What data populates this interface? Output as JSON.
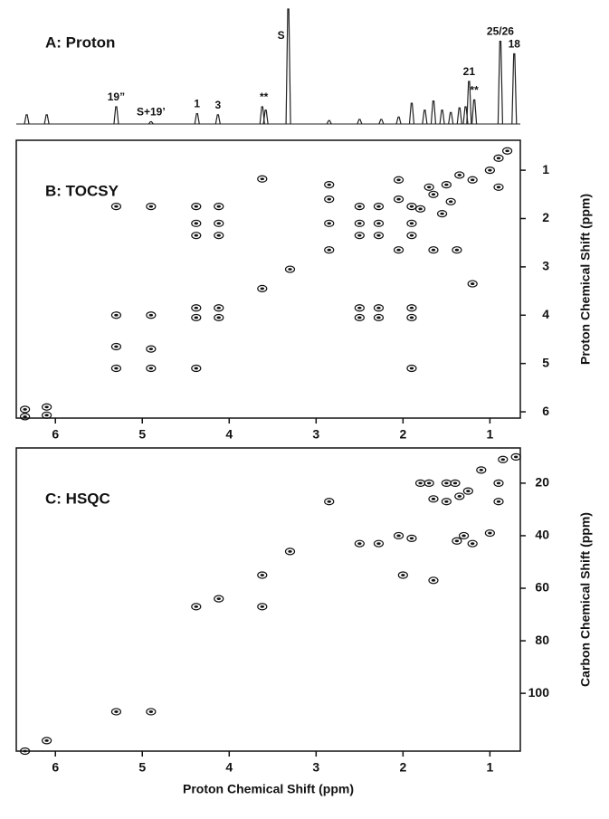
{
  "chart_data": [
    {
      "type": "spectrum",
      "title": "A: Proton",
      "x": [
        6.33,
        6.1,
        5.3,
        4.9,
        4.37,
        4.13,
        3.62,
        3.58,
        3.32,
        2.85,
        2.5,
        2.25,
        2.05,
        1.9,
        1.75,
        1.65,
        1.55,
        1.45,
        1.35,
        1.28,
        1.24,
        1.18,
        0.88,
        0.72
      ],
      "values": [
        8,
        8,
        15,
        2,
        9,
        8,
        15,
        12,
        100,
        3,
        4,
        4,
        6,
        18,
        12,
        20,
        12,
        10,
        14,
        15,
        37,
        21,
        72,
        61
      ],
      "xlim": [
        6.45,
        0.65
      ],
      "ylim": [
        0,
        100
      ],
      "color": "#222222",
      "annotations": [
        {
          "text": "19”",
          "x": 5.3
        },
        {
          "text": "S+19’",
          "x": 4.9
        },
        {
          "text": "1",
          "x": 4.37
        },
        {
          "text": "3",
          "x": 4.13
        },
        {
          "text": "**",
          "x": 3.6
        },
        {
          "text": "S",
          "x": 3.32
        },
        {
          "text": "21",
          "x": 1.24
        },
        {
          "text": "**",
          "x": 1.18
        },
        {
          "text": "25/26",
          "x": 0.88
        },
        {
          "text": "18",
          "x": 0.72
        }
      ]
    },
    {
      "type": "contour",
      "title": "B: TOCSY",
      "x": [
        6.35,
        6.35,
        6.1,
        6.1,
        5.3,
        5.3,
        5.3,
        5.3,
        4.9,
        4.9,
        4.9,
        4.9,
        4.38,
        4.38,
        4.38,
        4.38,
        4.38,
        4.38,
        4.12,
        4.12,
        4.12,
        4.12,
        4.12,
        3.62,
        3.62,
        3.3,
        2.85,
        2.85,
        2.85,
        2.85,
        2.5,
        2.5,
        2.5,
        2.5,
        2.5,
        2.28,
        2.28,
        2.28,
        2.28,
        2.28,
        2.05,
        2.05,
        2.05,
        1.9,
        1.9,
        1.9,
        1.9,
        1.9,
        1.9,
        1.65,
        1.38,
        1.2,
        1.8,
        1.65,
        1.5,
        1.35,
        1.2,
        1.0,
        0.9,
        0.8,
        1.45,
        1.7,
        0.9,
        1.55
      ],
      "y": [
        5.95,
        6.1,
        5.9,
        6.07,
        1.75,
        4.0,
        4.65,
        5.1,
        1.75,
        4.0,
        4.7,
        5.1,
        1.75,
        2.1,
        2.35,
        3.85,
        4.05,
        5.1,
        1.75,
        2.1,
        2.35,
        3.85,
        4.05,
        1.18,
        3.45,
        3.05,
        1.3,
        1.6,
        2.1,
        2.65,
        1.75,
        2.1,
        2.35,
        3.85,
        4.05,
        1.75,
        2.1,
        2.35,
        3.85,
        4.05,
        1.2,
        1.6,
        2.65,
        1.75,
        2.1,
        2.35,
        3.85,
        4.05,
        5.1,
        2.65,
        2.65,
        3.35,
        1.8,
        1.5,
        1.3,
        1.1,
        1.2,
        1.0,
        0.75,
        0.6,
        1.65,
        1.35,
        1.35,
        1.9
      ],
      "xlim": [
        6.45,
        0.65
      ],
      "ylim": [
        6.13,
        0.38
      ],
      "xticks": [
        6,
        5,
        4,
        3,
        2,
        1
      ],
      "yticks": [
        1,
        2,
        3,
        4,
        5,
        6
      ],
      "ylabel": "Proton Chemical Shift (ppm)",
      "color": "#111111"
    },
    {
      "type": "contour",
      "title": "C: HSQC",
      "x": [
        6.35,
        6.1,
        5.3,
        4.9,
        4.38,
        4.12,
        3.62,
        3.62,
        3.3,
        2.85,
        2.5,
        2.28,
        2.05,
        2.0,
        1.9,
        1.65,
        1.8,
        1.7,
        1.5,
        1.4,
        1.65,
        1.5,
        1.35,
        1.25,
        1.0,
        1.3,
        1.2,
        1.38,
        1.1,
        0.9,
        0.7,
        0.85,
        0.9
      ],
      "y": [
        122,
        118,
        107,
        107,
        67,
        64,
        67,
        55,
        46,
        27,
        43,
        43,
        40,
        55,
        41,
        57,
        20,
        20,
        20,
        20,
        26,
        27,
        25,
        23,
        39,
        40,
        43,
        42,
        15,
        20,
        10,
        11,
        27
      ],
      "xlim": [
        6.45,
        0.65
      ],
      "ylim": [
        122,
        6.6
      ],
      "xticks": [
        6,
        5,
        4,
        3,
        2,
        1
      ],
      "yticks": [
        20,
        40,
        60,
        80,
        100
      ],
      "xlabel": "Proton Chemical Shift (ppm)",
      "ylabel": "Carbon Chemical Shift (ppm)",
      "color": "#111111"
    }
  ]
}
